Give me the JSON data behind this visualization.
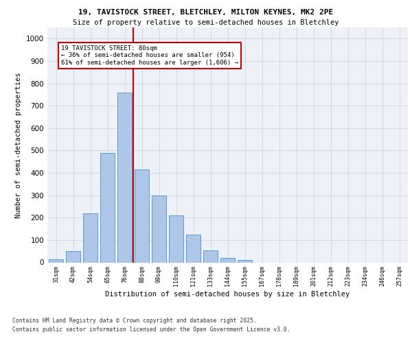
{
  "title_line1": "19, TAVISTOCK STREET, BLETCHLEY, MILTON KEYNES, MK2 2PE",
  "title_line2": "Size of property relative to semi-detached houses in Bletchley",
  "xlabel": "Distribution of semi-detached houses by size in Bletchley",
  "ylabel": "Number of semi-detached properties",
  "bar_labels": [
    "31sqm",
    "42sqm",
    "54sqm",
    "65sqm",
    "76sqm",
    "88sqm",
    "99sqm",
    "110sqm",
    "121sqm",
    "133sqm",
    "144sqm",
    "155sqm",
    "167sqm",
    "178sqm",
    "189sqm",
    "201sqm",
    "212sqm",
    "223sqm",
    "234sqm",
    "246sqm",
    "257sqm"
  ],
  "bar_values": [
    15,
    52,
    220,
    490,
    760,
    415,
    300,
    210,
    125,
    55,
    20,
    12,
    0,
    0,
    0,
    0,
    0,
    0,
    0,
    0,
    0
  ],
  "bar_color": "#aec6e8",
  "bar_edge_color": "#5b9bd5",
  "grid_color": "#d0d8e8",
  "background_color": "#eef2f8",
  "vline_x": 4.5,
  "vline_color": "#cc0000",
  "annotation_text": "19 TAVISTOCK STREET: 80sqm\n← 36% of semi-detached houses are smaller (954)\n61% of semi-detached houses are larger (1,606) →",
  "annotation_box_color": "#cc0000",
  "ylim": [
    0,
    1050
  ],
  "yticks": [
    0,
    100,
    200,
    300,
    400,
    500,
    600,
    700,
    800,
    900,
    1000
  ],
  "footer_line1": "Contains HM Land Registry data © Crown copyright and database right 2025.",
  "footer_line2": "Contains public sector information licensed under the Open Government Licence v3.0."
}
